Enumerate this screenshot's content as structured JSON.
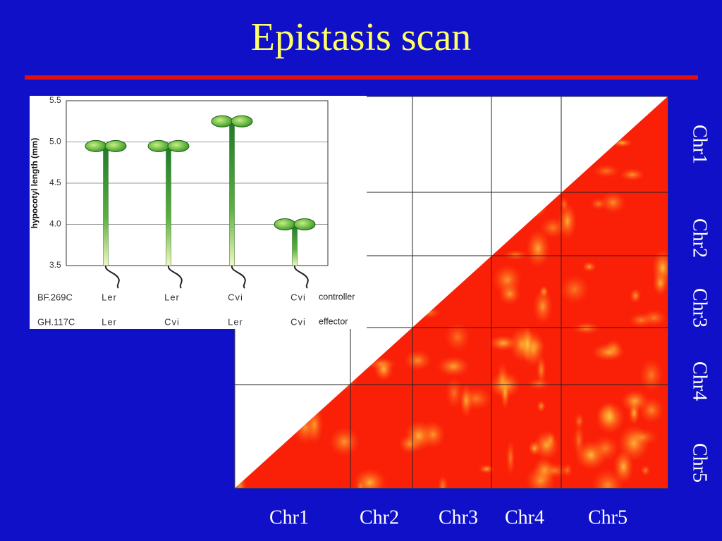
{
  "title": "Epistasis scan",
  "heatmap": {
    "x_labels": [
      "Chr1",
      "Chr2",
      "Chr3",
      "Chr4",
      "Chr5"
    ],
    "y_labels": [
      "Chr1",
      "Chr2",
      "Chr3",
      "Chr4",
      "Chr5"
    ]
  },
  "chart_data": {
    "type": "bar",
    "y_label": "hypocotyl length (mm)",
    "ylim": [
      3.5,
      5.5
    ],
    "yticks": [
      3.5,
      {
        "value": 4,
        "label": "4.0"
      },
      4.5,
      {
        "value": 5,
        "label": "5.0"
      },
      5.5
    ],
    "values": [
      4.95,
      4.95,
      5.25,
      4.0
    ],
    "genotype_rows": [
      {
        "marker": "BF.269C",
        "genotypes": [
          "Ler",
          "Ler",
          "Cvi",
          "Cvi"
        ],
        "role": "controller"
      },
      {
        "marker": "GH.117C",
        "genotypes": [
          "Ler",
          "Cvi",
          "Ler",
          "Cvi"
        ],
        "role": "effector"
      }
    ],
    "grid": true
  }
}
